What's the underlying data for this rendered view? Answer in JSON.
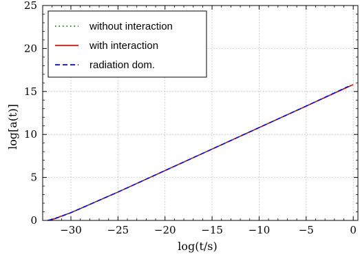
{
  "chart_data": {
    "type": "line",
    "title": "",
    "xlabel": "log(t/s)",
    "ylabel": "log[a(t)]",
    "xlim": [
      -33,
      0.5
    ],
    "ylim": [
      0,
      25
    ],
    "x_ticks": [
      -30,
      -25,
      -20,
      -15,
      -10,
      -5,
      0
    ],
    "x_tick_labels": [
      "−30",
      "−25",
      "−20",
      "−15",
      "−10",
      "−5",
      "0"
    ],
    "y_ticks": [
      0,
      5,
      10,
      15,
      20,
      25
    ],
    "y_tick_labels": [
      "0",
      "5",
      "10",
      "15",
      "20",
      "25"
    ],
    "grid": true,
    "legend_position": "top-left",
    "series": [
      {
        "name": "without interaction",
        "color": "#008000",
        "style": "dotted",
        "x": [
          -32.3,
          -31.6,
          -30,
          -25,
          -20,
          -15,
          -10,
          -5,
          -0.3
        ],
        "y": [
          0,
          0.3,
          0.9,
          3.3,
          5.8,
          8.3,
          10.8,
          13.3,
          15.7
        ]
      },
      {
        "name": "with interaction",
        "color": "#ff0000",
        "style": "solid",
        "x": [
          -32.2,
          -31.5,
          -30,
          -25,
          -20,
          -15,
          -10,
          -5,
          0
        ],
        "y": [
          0,
          0.3,
          0.9,
          3.3,
          5.8,
          8.3,
          10.8,
          13.3,
          15.8
        ]
      },
      {
        "name": "radiation dom.",
        "color": "#0000ff",
        "style": "dashed",
        "x": [
          -32.5,
          -31.7,
          -30,
          -25,
          -20,
          -15,
          -10,
          -5,
          -0.5
        ],
        "y": [
          0,
          0.2,
          0.9,
          3.3,
          5.8,
          8.3,
          10.8,
          13.3,
          15.6
        ]
      }
    ]
  }
}
